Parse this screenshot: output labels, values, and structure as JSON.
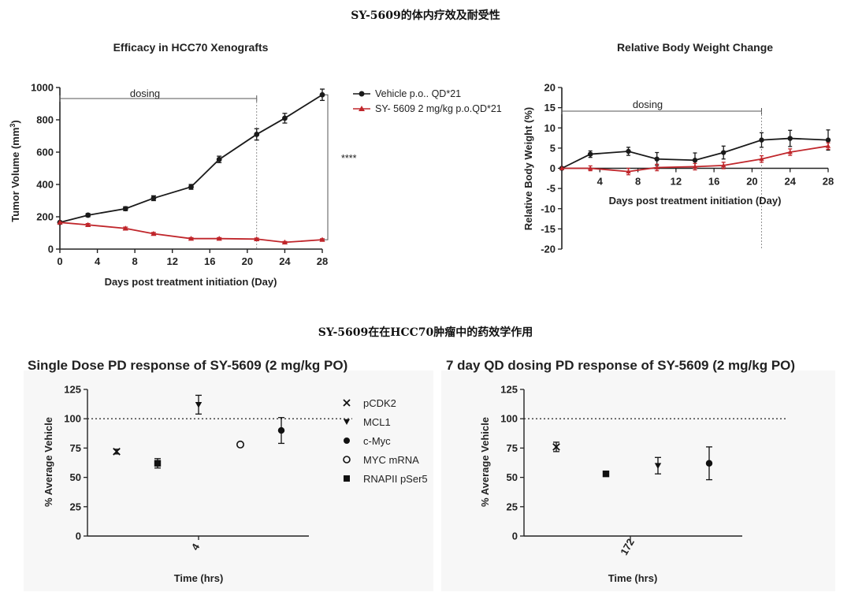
{
  "headings": {
    "top": "SY-5609的体内疗效及耐受性",
    "bottom": "SY-5609在在HCC70肿瘤中的药效学作用"
  },
  "colors": {
    "vehicle": "#1a1a1a",
    "treated": "#c0262b",
    "plot_bg": "#f7f7f7"
  },
  "chart_data": [
    {
      "type": "line",
      "id": "efficacy",
      "title": "Efficacy in  HCC70 Xenografts",
      "xlabel": "Days post treatment initiation (Day)",
      "ylabel": "Tumor Volume (mm",
      "ylabel_sup": "3",
      "ylabel_close": ")",
      "xlim": [
        0,
        28
      ],
      "ylim": [
        0,
        1000
      ],
      "xticks": [
        0,
        4,
        8,
        12,
        16,
        20,
        24,
        28
      ],
      "yticks": [
        0,
        200,
        400,
        600,
        800,
        1000
      ],
      "dosing_label": "dosing",
      "dosing_end": 21,
      "significance": "****",
      "series": [
        {
          "name": "Vehicle p.o.. QD*21",
          "color": "#1a1a1a",
          "marker": "circle",
          "x": [
            0,
            3,
            7,
            10,
            14,
            17,
            21,
            24,
            28
          ],
          "y": [
            165,
            210,
            250,
            315,
            385,
            555,
            710,
            810,
            955
          ],
          "err": [
            0,
            10,
            12,
            15,
            15,
            20,
            35,
            30,
            35
          ]
        },
        {
          "name": "SY- 5609 2 mg/kg p.o.QD*21",
          "color": "#c0262b",
          "marker": "triangle",
          "x": [
            0,
            3,
            7,
            10,
            14,
            17,
            21,
            24,
            28
          ],
          "y": [
            165,
            150,
            128,
            95,
            65,
            65,
            62,
            42,
            58
          ],
          "err": [
            0,
            8,
            8,
            8,
            6,
            6,
            6,
            5,
            6
          ]
        }
      ]
    },
    {
      "type": "line",
      "id": "bodyweight",
      "title": "Relative  Body  Weight Change",
      "xlabel": "Days post treatment initiation (Day)",
      "ylabel": "Relative Body Weight (%)",
      "xlim": [
        0,
        28
      ],
      "ylim": [
        -20,
        20
      ],
      "xticks": [
        4,
        8,
        12,
        16,
        20,
        24,
        28
      ],
      "yticks": [
        20,
        15,
        10,
        5,
        0,
        -5,
        -10,
        -15,
        -20
      ],
      "dosing_label": "dosing",
      "dosing_end": 21,
      "series": [
        {
          "name": "Vehicle",
          "color": "#1a1a1a",
          "marker": "circle",
          "x": [
            0,
            3,
            7,
            10,
            14,
            17,
            21,
            24,
            28
          ],
          "y": [
            0,
            3.5,
            4.2,
            2.3,
            2.0,
            3.9,
            7.0,
            7.4,
            7.0
          ],
          "err": [
            0,
            0.8,
            1.0,
            1.6,
            1.8,
            1.6,
            1.8,
            2.0,
            2.5
          ]
        },
        {
          "name": "SY-5609",
          "color": "#c0262b",
          "marker": "triangle",
          "x": [
            0,
            3,
            7,
            10,
            14,
            17,
            21,
            24,
            28
          ],
          "y": [
            0,
            0,
            -0.8,
            0.2,
            0.4,
            0.7,
            2.3,
            4.0,
            5.5
          ],
          "err": [
            0,
            0.6,
            0.8,
            0.8,
            0.8,
            0.8,
            0.8,
            0.8,
            0.8
          ]
        }
      ]
    },
    {
      "type": "scatter",
      "id": "single-dose",
      "title": "Single Dose PD response of SY-5609 (2 mg/kg PO)",
      "xlabel": "Time (hrs)",
      "ylabel": "% Average Vehicle",
      "ylim": [
        0,
        125
      ],
      "yticks": [
        0,
        25,
        50,
        75,
        100,
        125
      ],
      "reference_line": 100,
      "category": "4",
      "points": [
        {
          "marker": "x",
          "value": 72,
          "err": 2
        },
        {
          "marker": "square",
          "value": 62,
          "err": 4
        },
        {
          "marker": "triangle-down",
          "value": 112,
          "err": 8
        },
        {
          "marker": "open-circle",
          "value": 78,
          "err": 0
        },
        {
          "marker": "circle",
          "value": 90,
          "err": 11
        }
      ]
    },
    {
      "type": "scatter",
      "id": "seven-day",
      "title": "7 day QD dosing PD response of SY-5609 (2 mg/kg PO)",
      "xlabel": "Time (hrs)",
      "ylabel": "% Average Vehicle",
      "ylim": [
        0,
        125
      ],
      "yticks": [
        0,
        25,
        50,
        75,
        100,
        125
      ],
      "reference_line": 100,
      "category": "172",
      "points": [
        {
          "marker": "x",
          "value": 76,
          "err": 4
        },
        {
          "marker": "square",
          "value": 53,
          "err": 0
        },
        {
          "marker": "triangle-down",
          "value": 60,
          "err": 7
        },
        {
          "marker": "circle",
          "value": 62,
          "err": 14
        }
      ]
    }
  ],
  "pd_legend": [
    {
      "marker": "x",
      "label": "pCDK2"
    },
    {
      "marker": "triangle-down",
      "label": "MCL1"
    },
    {
      "marker": "circle",
      "label": "c-Myc"
    },
    {
      "marker": "open-circle",
      "label": "MYC mRNA"
    },
    {
      "marker": "square",
      "label": "RNAPII pSer5"
    }
  ]
}
